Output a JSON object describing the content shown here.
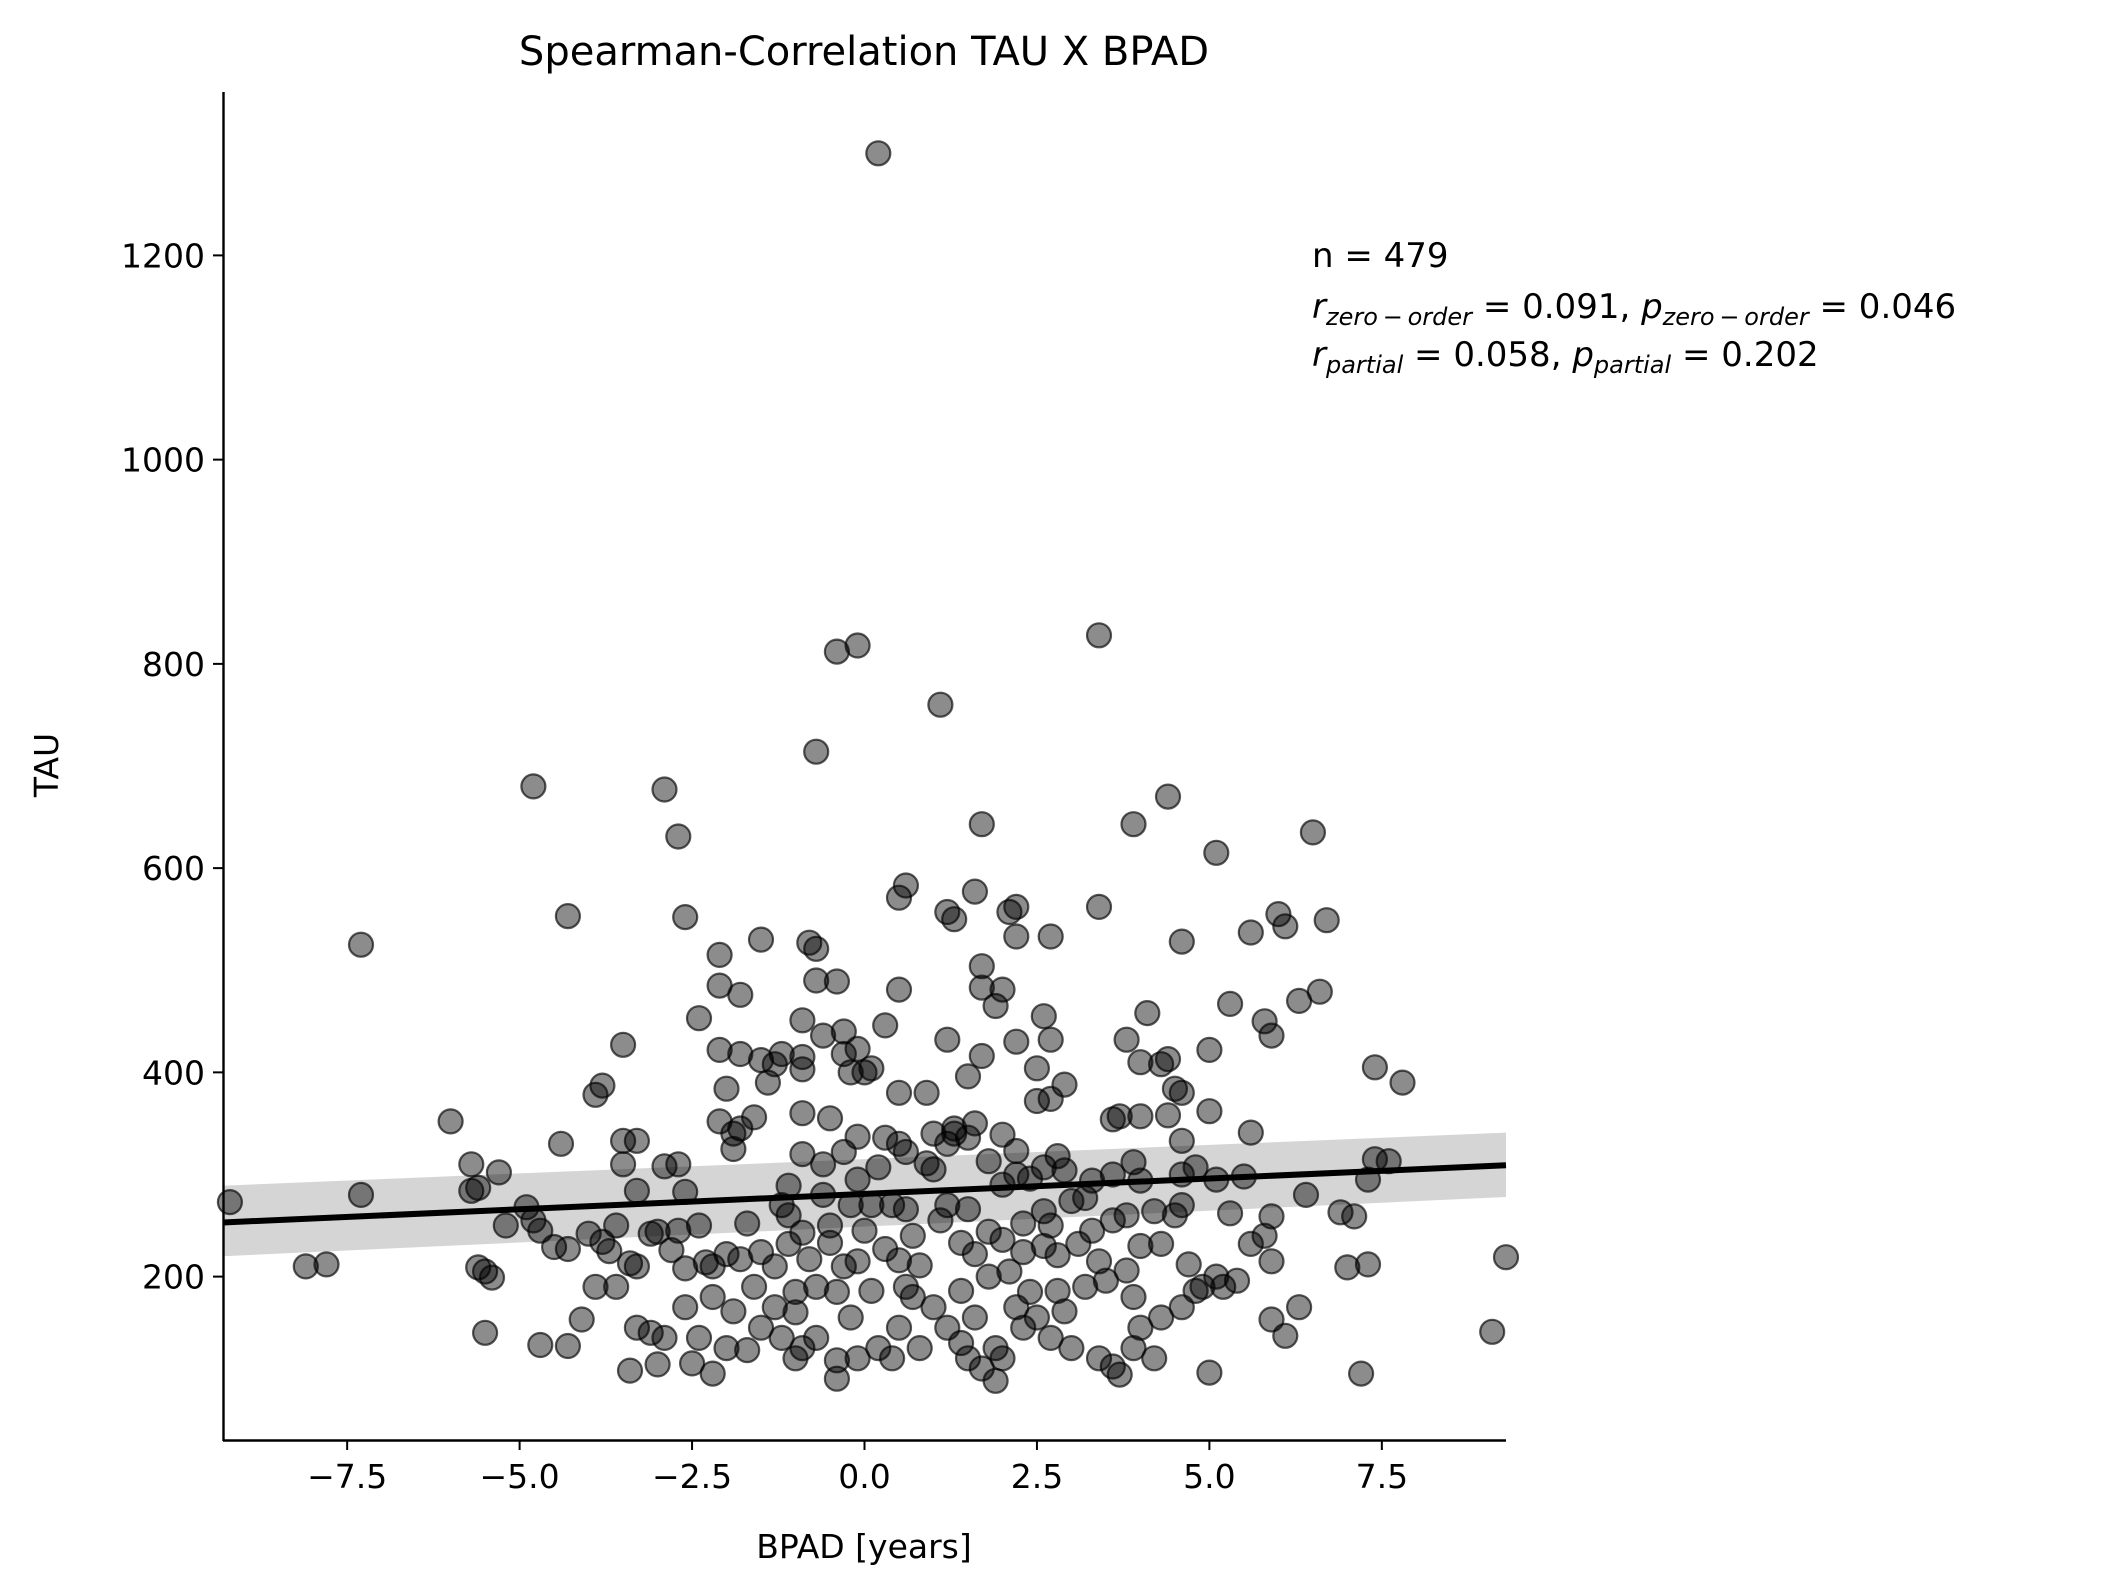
{
  "chart_data": {
    "type": "scatter",
    "title": "Spearman-Correlation TAU X BPAD",
    "xlabel": "BPAD [years]",
    "ylabel": "TAU",
    "xlim": [
      -9.3,
      9.3
    ],
    "ylim": [
      40,
      1360
    ],
    "xticks": [
      -7.5,
      -5.0,
      -2.5,
      0.0,
      2.5,
      5.0,
      7.5
    ],
    "xtick_labels": [
      "−7.5",
      "−5.0",
      "−2.5",
      "0.0",
      "2.5",
      "5.0",
      "7.5"
    ],
    "yticks": [
      200,
      400,
      600,
      800,
      1000,
      1200
    ],
    "ytick_labels": [
      "200",
      "400",
      "600",
      "800",
      "1000",
      "1200"
    ],
    "grid": false,
    "point_color": "#000000",
    "point_alpha": 0.45,
    "regression": {
      "x": [
        -9.3,
        9.3
      ],
      "y": [
        253,
        309
      ],
      "ci_lower": [
        220,
        278
      ],
      "ci_upper": [
        289,
        341
      ],
      "line_color": "#000000",
      "band_color": "#d3d3d3"
    },
    "annotation": {
      "n_line": "n = 479",
      "r0_sym": "r",
      "r0_sub": "zero − order",
      "r0_val": " = 0.091, ",
      "p0_sym": "p",
      "p0_sub": "zero − order",
      "p0_val": " = 0.046",
      "rp_sym": "r",
      "rp_sub": "partial",
      "rp_val": " = 0.058, ",
      "pp_sym": "p",
      "pp_sub": "partial",
      "pp_val": " = 0.202"
    },
    "points": [
      [
        0.2,
        1300
      ],
      [
        3.4,
        828
      ],
      [
        -0.4,
        812
      ],
      [
        -0.1,
        818
      ],
      [
        1.1,
        760
      ],
      [
        -0.7,
        714
      ],
      [
        -4.8,
        680
      ],
      [
        -2.9,
        677
      ],
      [
        -2.7,
        631
      ],
      [
        4.4,
        670
      ],
      [
        1.7,
        643
      ],
      [
        3.9,
        643
      ],
      [
        5.1,
        615
      ],
      [
        6.5,
        635
      ],
      [
        -7.3,
        525
      ],
      [
        -4.3,
        553
      ],
      [
        -2.6,
        552
      ],
      [
        0.6,
        583
      ],
      [
        0.5,
        571
      ],
      [
        1.2,
        557
      ],
      [
        1.3,
        550
      ],
      [
        1.6,
        577
      ],
      [
        2.1,
        557
      ],
      [
        2.2,
        562
      ],
      [
        3.4,
        562
      ],
      [
        5.6,
        537
      ],
      [
        6.0,
        555
      ],
      [
        6.1,
        543
      ],
      [
        6.7,
        549
      ],
      [
        2.2,
        533
      ],
      [
        2.7,
        533
      ],
      [
        -2.1,
        515
      ],
      [
        -1.5,
        530
      ],
      [
        -0.8,
        527
      ],
      [
        -0.7,
        521
      ],
      [
        1.7,
        504
      ],
      [
        4.6,
        528
      ],
      [
        6.3,
        470
      ],
      [
        6.6,
        479
      ],
      [
        5.3,
        467
      ],
      [
        5.8,
        450
      ],
      [
        5.9,
        436
      ],
      [
        0.5,
        481
      ],
      [
        1.7,
        483
      ],
      [
        2.0,
        481
      ],
      [
        -2.1,
        485
      ],
      [
        -1.8,
        476
      ],
      [
        -0.7,
        490
      ],
      [
        -0.4,
        489
      ],
      [
        -2.4,
        453
      ],
      [
        -0.9,
        451
      ],
      [
        0.3,
        446
      ],
      [
        1.2,
        432
      ],
      [
        1.9,
        465
      ],
      [
        2.2,
        430
      ],
      [
        2.6,
        455
      ],
      [
        2.7,
        432
      ],
      [
        4.1,
        458
      ],
      [
        3.8,
        432
      ],
      [
        5.0,
        422
      ],
      [
        -3.5,
        427
      ],
      [
        -3.8,
        387
      ],
      [
        -3.9,
        378
      ],
      [
        -2.1,
        422
      ],
      [
        -1.8,
        418
      ],
      [
        -1.5,
        412
      ],
      [
        -1.2,
        418
      ],
      [
        -1.3,
        408
      ],
      [
        -0.9,
        415
      ],
      [
        -0.9,
        403
      ],
      [
        -0.6,
        436
      ],
      [
        -0.3,
        440
      ],
      [
        -0.1,
        423
      ],
      [
        0.0,
        400
      ],
      [
        0.1,
        404
      ],
      [
        -0.3,
        418
      ],
      [
        -0.2,
        400
      ],
      [
        0.5,
        380
      ],
      [
        1.5,
        396
      ],
      [
        1.7,
        416
      ],
      [
        2.5,
        404
      ],
      [
        2.5,
        372
      ],
      [
        2.7,
        374
      ],
      [
        2.9,
        388
      ],
      [
        4.0,
        410
      ],
      [
        4.3,
        408
      ],
      [
        4.4,
        413
      ],
      [
        4.5,
        384
      ],
      [
        4.6,
        380
      ],
      [
        7.4,
        405
      ],
      [
        7.8,
        390
      ],
      [
        -6.0,
        352
      ],
      [
        -5.7,
        310
      ],
      [
        -5.3,
        302
      ],
      [
        -3.5,
        333
      ],
      [
        -3.3,
        333
      ],
      [
        -3.5,
        310
      ],
      [
        -2.7,
        310
      ],
      [
        -2.9,
        308
      ],
      [
        -2.0,
        384
      ],
      [
        -2.1,
        352
      ],
      [
        -1.9,
        340
      ],
      [
        -1.8,
        345
      ],
      [
        -1.6,
        356
      ],
      [
        -1.4,
        390
      ],
      [
        -0.9,
        360
      ],
      [
        -0.5,
        355
      ],
      [
        -0.1,
        337
      ],
      [
        0.3,
        336
      ],
      [
        0.5,
        330
      ],
      [
        0.9,
        380
      ],
      [
        1.0,
        340
      ],
      [
        1.3,
        345
      ],
      [
        1.5,
        336
      ],
      [
        1.6,
        350
      ],
      [
        2.0,
        339
      ],
      [
        2.2,
        323
      ],
      [
        3.6,
        354
      ],
      [
        3.7,
        357
      ],
      [
        4.0,
        357
      ],
      [
        4.4,
        358
      ],
      [
        4.6,
        333
      ],
      [
        5.0,
        362
      ],
      [
        5.6,
        341
      ],
      [
        -4.4,
        330
      ],
      [
        -5.6,
        287
      ],
      [
        -5.7,
        284
      ],
      [
        -3.3,
        284
      ],
      [
        -2.6,
        283
      ],
      [
        -1.9,
        325
      ],
      [
        -1.1,
        289
      ],
      [
        -0.9,
        320
      ],
      [
        -0.6,
        310
      ],
      [
        -0.3,
        322
      ],
      [
        -0.1,
        295
      ],
      [
        0.2,
        307
      ],
      [
        0.6,
        322
      ],
      [
        0.9,
        311
      ],
      [
        1.0,
        305
      ],
      [
        1.2,
        330
      ],
      [
        1.3,
        340
      ],
      [
        1.8,
        313
      ],
      [
        2.0,
        290
      ],
      [
        2.2,
        300
      ],
      [
        2.4,
        296
      ],
      [
        2.6,
        307
      ],
      [
        2.8,
        318
      ],
      [
        2.9,
        304
      ],
      [
        3.3,
        294
      ],
      [
        3.6,
        300
      ],
      [
        3.9,
        312
      ],
      [
        4.0,
        294
      ],
      [
        4.6,
        300
      ],
      [
        4.8,
        307
      ],
      [
        5.1,
        295
      ],
      [
        5.5,
        298
      ],
      [
        6.4,
        280
      ],
      [
        6.9,
        263
      ],
      [
        7.1,
        259
      ],
      [
        7.3,
        295
      ],
      [
        7.4,
        315
      ],
      [
        7.6,
        313
      ],
      [
        -9.2,
        273
      ],
      [
        -7.3,
        280
      ],
      [
        -4.9,
        268
      ],
      [
        -4.8,
        255
      ],
      [
        -3.0,
        244
      ],
      [
        -2.7,
        245
      ],
      [
        -2.4,
        250
      ],
      [
        -1.7,
        252
      ],
      [
        -1.2,
        270
      ],
      [
        -1.1,
        260
      ],
      [
        -0.9,
        243
      ],
      [
        -0.6,
        280
      ],
      [
        -0.2,
        270
      ],
      [
        0.1,
        270
      ],
      [
        0.4,
        270
      ],
      [
        0.6,
        266
      ],
      [
        1.2,
        270
      ],
      [
        1.5,
        266
      ],
      [
        1.8,
        244
      ],
      [
        2.3,
        252
      ],
      [
        2.6,
        264
      ],
      [
        2.7,
        250
      ],
      [
        3.0,
        274
      ],
      [
        3.2,
        277
      ],
      [
        3.6,
        255
      ],
      [
        3.8,
        260
      ],
      [
        4.2,
        264
      ],
      [
        4.6,
        270
      ],
      [
        5.3,
        262
      ],
      [
        5.9,
        259
      ],
      [
        -8.1,
        210
      ],
      [
        -7.8,
        212
      ],
      [
        -5.6,
        209
      ],
      [
        -5.5,
        205
      ],
      [
        -5.4,
        199
      ],
      [
        -5.2,
        250
      ],
      [
        -4.7,
        245
      ],
      [
        -4.5,
        229
      ],
      [
        -4.3,
        227
      ],
      [
        -4.0,
        242
      ],
      [
        -3.8,
        234
      ],
      [
        -3.7,
        225
      ],
      [
        -3.4,
        213
      ],
      [
        -3.3,
        210
      ],
      [
        -3.1,
        242
      ],
      [
        -2.8,
        226
      ],
      [
        -2.6,
        208
      ],
      [
        -2.3,
        214
      ],
      [
        -2.0,
        222
      ],
      [
        -1.8,
        217
      ],
      [
        -1.5,
        224
      ],
      [
        -1.3,
        210
      ],
      [
        -1.1,
        232
      ],
      [
        -0.8,
        217
      ],
      [
        -0.5,
        233
      ],
      [
        -0.3,
        210
      ],
      [
        -0.1,
        215
      ],
      [
        0.3,
        227
      ],
      [
        0.5,
        216
      ],
      [
        0.8,
        211
      ],
      [
        1.4,
        233
      ],
      [
        1.6,
        222
      ],
      [
        2.0,
        236
      ],
      [
        2.3,
        224
      ],
      [
        2.6,
        230
      ],
      [
        2.8,
        221
      ],
      [
        3.1,
        232
      ],
      [
        3.4,
        215
      ],
      [
        3.8,
        206
      ],
      [
        4.0,
        230
      ],
      [
        4.3,
        232
      ],
      [
        4.7,
        212
      ],
      [
        5.6,
        232
      ],
      [
        5.9,
        215
      ],
      [
        7.0,
        209
      ],
      [
        7.3,
        212
      ],
      [
        9.3,
        219
      ],
      [
        -5.5,
        145
      ],
      [
        -4.7,
        133
      ],
      [
        -4.3,
        132
      ],
      [
        -4.1,
        158
      ],
      [
        -3.9,
        190
      ],
      [
        -3.6,
        190
      ],
      [
        -3.3,
        150
      ],
      [
        -3.1,
        145
      ],
      [
        -2.9,
        140
      ],
      [
        -2.5,
        115
      ],
      [
        -2.4,
        140
      ],
      [
        -2.2,
        105
      ],
      [
        -2.0,
        130
      ],
      [
        -1.7,
        128
      ],
      [
        -1.5,
        150
      ],
      [
        -1.2,
        140
      ],
      [
        -0.9,
        130
      ],
      [
        -0.7,
        140
      ],
      [
        -0.4,
        118
      ],
      [
        -0.1,
        120
      ],
      [
        0.2,
        130
      ],
      [
        0.5,
        150
      ],
      [
        0.8,
        130
      ],
      [
        1.2,
        150
      ],
      [
        1.5,
        120
      ],
      [
        1.7,
        110
      ],
      [
        1.9,
        130
      ],
      [
        2.0,
        120
      ],
      [
        2.3,
        150
      ],
      [
        2.7,
        140
      ],
      [
        3.0,
        130
      ],
      [
        3.4,
        120
      ],
      [
        3.6,
        112
      ],
      [
        3.9,
        130
      ],
      [
        4.2,
        120
      ],
      [
        4.6,
        170
      ],
      [
        5.0,
        106
      ],
      [
        5.2,
        190
      ],
      [
        5.9,
        158
      ],
      [
        6.3,
        170
      ],
      [
        7.2,
        105
      ],
      [
        9.1,
        146
      ],
      [
        -3.4,
        108
      ],
      [
        -3.0,
        114
      ],
      [
        -2.6,
        170
      ],
      [
        -2.2,
        180
      ],
      [
        -1.9,
        166
      ],
      [
        -1.6,
        190
      ],
      [
        -1.3,
        170
      ],
      [
        -1.0,
        185
      ],
      [
        -0.7,
        190
      ],
      [
        -0.4,
        185
      ],
      [
        -0.2,
        160
      ],
      [
        0.4,
        120
      ],
      [
        0.7,
        180
      ],
      [
        1.0,
        170
      ],
      [
        1.4,
        186
      ],
      [
        1.6,
        160
      ],
      [
        2.2,
        170
      ],
      [
        2.5,
        160
      ],
      [
        2.8,
        186
      ],
      [
        3.2,
        190
      ],
      [
        3.5,
        196
      ],
      [
        4.0,
        150
      ],
      [
        4.3,
        160
      ],
      [
        4.8,
        186
      ],
      [
        5.4,
        196
      ],
      [
        6.1,
        142
      ],
      [
        -0.4,
        100
      ],
      [
        1.9,
        98
      ],
      [
        3.7,
        104
      ],
      [
        -1.0,
        120
      ],
      [
        0.1,
        186
      ],
      [
        0.6,
        190
      ],
      [
        1.4,
        135
      ],
      [
        2.9,
        166
      ],
      [
        -3.6,
        250
      ],
      [
        -2.2,
        210
      ],
      [
        -1.0,
        165
      ],
      [
        -0.5,
        250
      ],
      [
        0.0,
        245
      ],
      [
        0.7,
        240
      ],
      [
        1.1,
        255
      ],
      [
        1.8,
        200
      ],
      [
        2.1,
        205
      ],
      [
        2.4,
        185
      ],
      [
        3.3,
        245
      ],
      [
        3.9,
        180
      ],
      [
        4.5,
        260
      ],
      [
        4.9,
        190
      ],
      [
        5.1,
        200
      ],
      [
        5.8,
        240
      ]
    ]
  }
}
